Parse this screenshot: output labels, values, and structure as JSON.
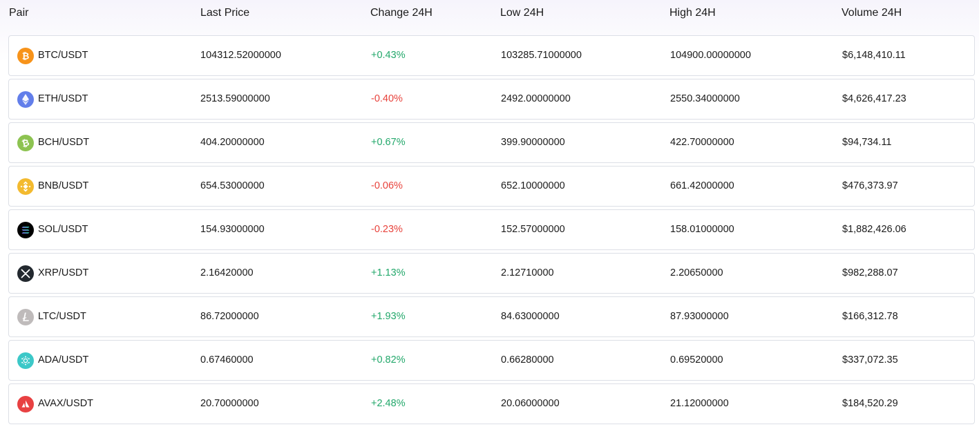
{
  "header": {
    "pair": "Pair",
    "last_price": "Last Price",
    "change": "Change 24H",
    "low": "Low 24H",
    "high": "High 24H",
    "volume": "Volume 24H"
  },
  "colors": {
    "positive": "#23a86b",
    "negative": "#e8423b"
  },
  "rows": [
    {
      "pair": "BTC/USDT",
      "icon": "btc-icon",
      "last": "104312.52000000",
      "change": "+0.43%",
      "dir": "pos",
      "low": "103285.71000000",
      "high": "104900.00000000",
      "volume": "$6,148,410.11"
    },
    {
      "pair": "ETH/USDT",
      "icon": "eth-icon",
      "last": "2513.59000000",
      "change": "-0.40%",
      "dir": "neg",
      "low": "2492.00000000",
      "high": "2550.34000000",
      "volume": "$4,626,417.23"
    },
    {
      "pair": "BCH/USDT",
      "icon": "bch-icon",
      "last": "404.20000000",
      "change": "+0.67%",
      "dir": "pos",
      "low": "399.90000000",
      "high": "422.70000000",
      "volume": "$94,734.11"
    },
    {
      "pair": "BNB/USDT",
      "icon": "bnb-icon",
      "last": "654.53000000",
      "change": "-0.06%",
      "dir": "neg",
      "low": "652.10000000",
      "high": "661.42000000",
      "volume": "$476,373.97"
    },
    {
      "pair": "SOL/USDT",
      "icon": "sol-icon",
      "last": "154.93000000",
      "change": "-0.23%",
      "dir": "neg",
      "low": "152.57000000",
      "high": "158.01000000",
      "volume": "$1,882,426.06"
    },
    {
      "pair": "XRP/USDT",
      "icon": "xrp-icon",
      "last": "2.16420000",
      "change": "+1.13%",
      "dir": "pos",
      "low": "2.12710000",
      "high": "2.20650000",
      "volume": "$982,288.07"
    },
    {
      "pair": "LTC/USDT",
      "icon": "ltc-icon",
      "last": "86.72000000",
      "change": "+1.93%",
      "dir": "pos",
      "low": "84.63000000",
      "high": "87.93000000",
      "volume": "$166,312.78"
    },
    {
      "pair": "ADA/USDT",
      "icon": "ada-icon",
      "last": "0.67460000",
      "change": "+0.82%",
      "dir": "pos",
      "low": "0.66280000",
      "high": "0.69520000",
      "volume": "$337,072.35"
    },
    {
      "pair": "AVAX/USDT",
      "icon": "avax-icon",
      "last": "20.70000000",
      "change": "+2.48%",
      "dir": "pos",
      "low": "20.06000000",
      "high": "21.12000000",
      "volume": "$184,520.29"
    }
  ]
}
